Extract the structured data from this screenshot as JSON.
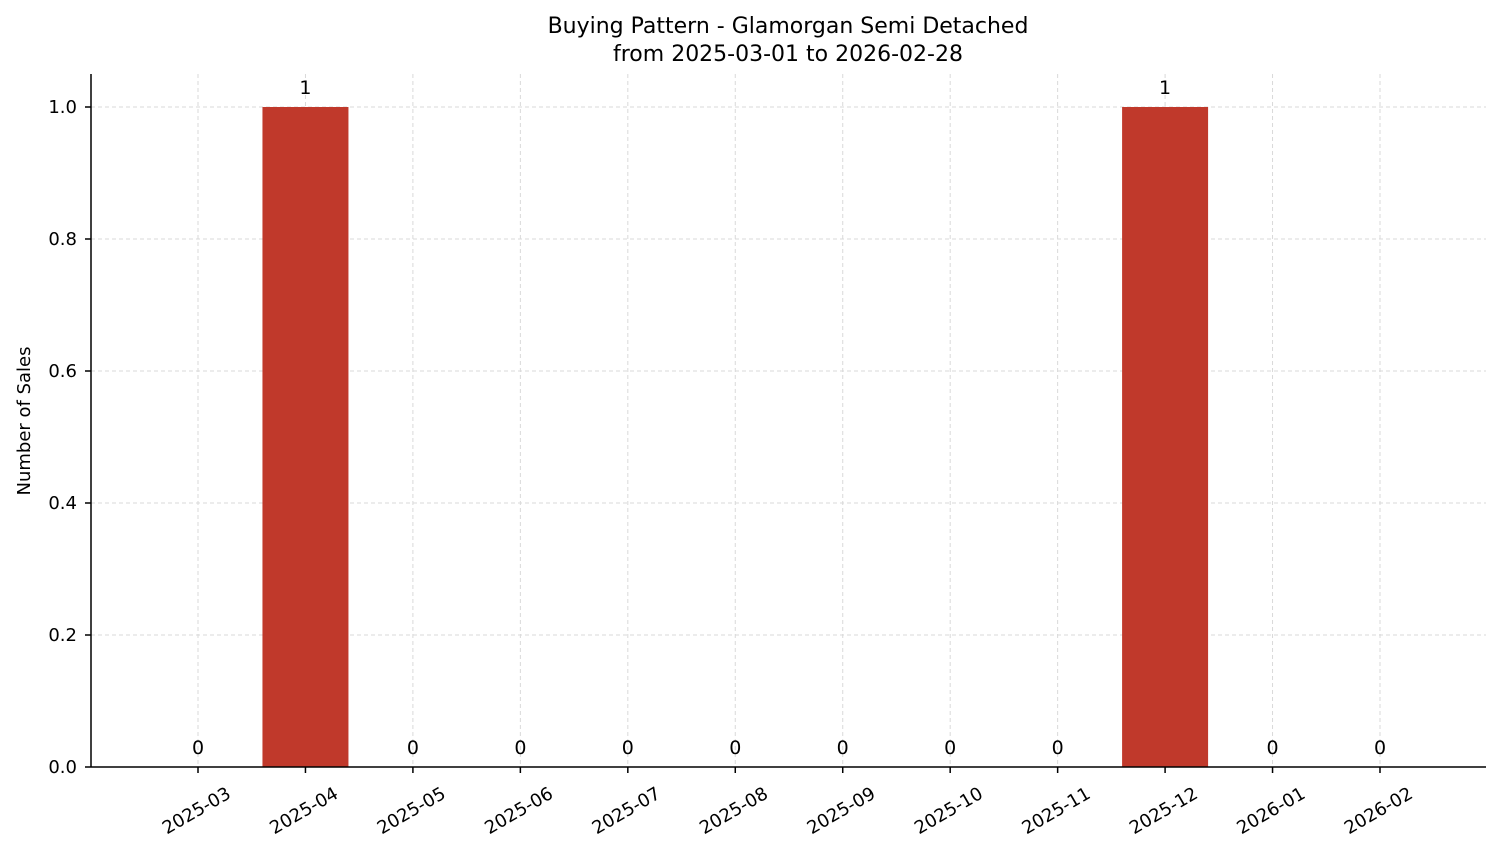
{
  "chart_data": {
    "type": "bar",
    "title": "Buying Pattern - Glamorgan Semi Detached",
    "subtitle": "from 2025-03-01 to 2026-02-28",
    "xlabel": "",
    "ylabel": "Number of Sales",
    "categories": [
      "2025-03",
      "2025-04",
      "2025-05",
      "2025-06",
      "2025-07",
      "2025-08",
      "2025-09",
      "2025-10",
      "2025-11",
      "2025-12",
      "2026-01",
      "2026-02"
    ],
    "values": [
      0,
      1,
      0,
      0,
      0,
      0,
      0,
      0,
      0,
      1,
      0,
      0
    ],
    "data_labels": [
      "0",
      "1",
      "0",
      "0",
      "0",
      "0",
      "0",
      "0",
      "0",
      "1",
      "0",
      "0"
    ],
    "ylim": [
      0,
      1.05
    ],
    "yticks": [
      0.0,
      0.2,
      0.4,
      0.6,
      0.8,
      1.0
    ],
    "ytick_labels": [
      "0.0",
      "0.2",
      "0.4",
      "0.6",
      "0.8",
      "1.0"
    ],
    "grid": true,
    "bar_color": "#c0392b"
  }
}
